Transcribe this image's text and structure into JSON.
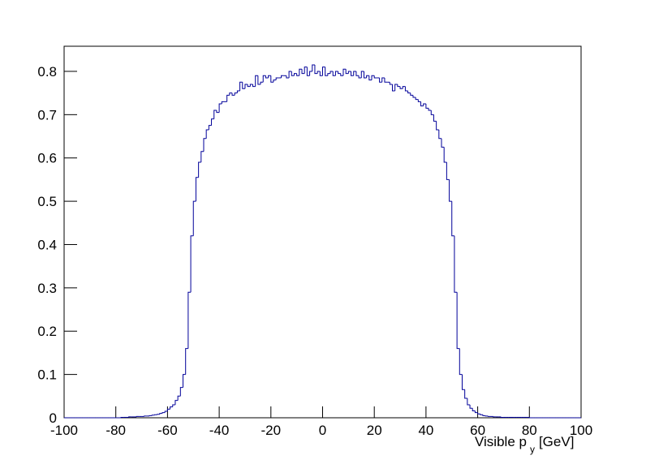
{
  "chart_data": {
    "type": "histogram",
    "xlabel": "Visible p",
    "xlabel_subscript": "y",
    "xlabel_unit": "[GeV]",
    "color": "#000099",
    "xlim": [
      -100,
      100
    ],
    "ylim": [
      0,
      0.858
    ],
    "xticks": [
      -100,
      -80,
      -60,
      -40,
      -20,
      0,
      20,
      40,
      60,
      80,
      100
    ],
    "yticks": [
      0,
      0.1,
      0.2,
      0.3,
      0.4,
      0.5,
      0.6,
      0.7,
      0.8
    ],
    "bins": [
      -100,
      -99,
      -98,
      -97,
      -96,
      -95,
      -94,
      -93,
      -92,
      -91,
      -90,
      -89,
      -88,
      -87,
      -86,
      -85,
      -84,
      -83,
      -82,
      -81,
      -80,
      -79,
      -78,
      -77,
      -76,
      -75,
      -74,
      -73,
      -72,
      -71,
      -70,
      -69,
      -68,
      -67,
      -66,
      -65,
      -64,
      -63,
      -62,
      -61,
      -60,
      -59,
      -58,
      -57,
      -56,
      -55,
      -54,
      -53,
      -52,
      -51,
      -50,
      -49,
      -48,
      -47,
      -46,
      -45,
      -44,
      -43,
      -42,
      -41,
      -40,
      -39,
      -38,
      -37,
      -36,
      -35,
      -34,
      -33,
      -32,
      -31,
      -30,
      -29,
      -28,
      -27,
      -26,
      -25,
      -24,
      -23,
      -22,
      -21,
      -20,
      -19,
      -18,
      -17,
      -16,
      -15,
      -14,
      -13,
      -12,
      -11,
      -10,
      -9,
      -8,
      -7,
      -6,
      -5,
      -4,
      -3,
      -2,
      -1,
      0,
      1,
      2,
      3,
      4,
      5,
      6,
      7,
      8,
      9,
      10,
      11,
      12,
      13,
      14,
      15,
      16,
      17,
      18,
      19,
      20,
      21,
      22,
      23,
      24,
      25,
      26,
      27,
      28,
      29,
      30,
      31,
      32,
      33,
      34,
      35,
      36,
      37,
      38,
      39,
      40,
      41,
      42,
      43,
      44,
      45,
      46,
      47,
      48,
      49,
      50,
      51,
      52,
      53,
      54,
      55,
      56,
      57,
      58,
      59,
      60,
      61,
      62,
      63,
      64,
      65,
      66,
      67,
      68,
      69,
      70,
      71,
      72,
      73,
      74,
      75,
      76,
      77,
      78,
      79,
      80,
      81,
      82,
      83,
      84,
      85,
      86,
      87,
      88,
      89,
      90,
      91,
      92,
      93,
      94,
      95,
      96,
      97,
      98,
      99,
      100
    ],
    "values": [
      0,
      0,
      0,
      0,
      0,
      0,
      0,
      0,
      0,
      0,
      0,
      0,
      0,
      0,
      0,
      0,
      0,
      0,
      0,
      0,
      0,
      0,
      0.001,
      0.001,
      0.001,
      0.002,
      0.002,
      0.002,
      0.003,
      0.003,
      0.003,
      0.004,
      0.004,
      0.005,
      0.006,
      0.007,
      0.008,
      0.01,
      0.012,
      0.015,
      0.02,
      0.025,
      0.03,
      0.04,
      0.05,
      0.07,
      0.1,
      0.16,
      0.29,
      0.42,
      0.5,
      0.555,
      0.59,
      0.615,
      0.645,
      0.665,
      0.675,
      0.69,
      0.71,
      0.705,
      0.725,
      0.73,
      0.73,
      0.745,
      0.75,
      0.745,
      0.75,
      0.755,
      0.775,
      0.76,
      0.77,
      0.765,
      0.77,
      0.765,
      0.79,
      0.77,
      0.775,
      0.79,
      0.785,
      0.79,
      0.775,
      0.78,
      0.785,
      0.785,
      0.79,
      0.79,
      0.785,
      0.8,
      0.79,
      0.795,
      0.79,
      0.805,
      0.795,
      0.81,
      0.79,
      0.8,
      0.815,
      0.795,
      0.8,
      0.79,
      0.81,
      0.79,
      0.795,
      0.8,
      0.79,
      0.8,
      0.795,
      0.79,
      0.805,
      0.795,
      0.8,
      0.79,
      0.8,
      0.79,
      0.785,
      0.8,
      0.785,
      0.79,
      0.78,
      0.79,
      0.785,
      0.785,
      0.775,
      0.785,
      0.775,
      0.775,
      0.77,
      0.755,
      0.77,
      0.765,
      0.76,
      0.765,
      0.755,
      0.75,
      0.745,
      0.74,
      0.735,
      0.73,
      0.72,
      0.725,
      0.715,
      0.71,
      0.7,
      0.685,
      0.665,
      0.645,
      0.625,
      0.59,
      0.55,
      0.5,
      0.42,
      0.29,
      0.16,
      0.1,
      0.065,
      0.045,
      0.03,
      0.022,
      0.016,
      0.012,
      0.009,
      0.007,
      0.005,
      0.004,
      0.003,
      0.003,
      0.002,
      0.002,
      0.002,
      0.001,
      0.001,
      0.001,
      0.001,
      0.001,
      0.001,
      0.001,
      0.001,
      0.001,
      0.001,
      0.001,
      0,
      0,
      0,
      0,
      0,
      0,
      0,
      0,
      0,
      0,
      0,
      0,
      0,
      0,
      0,
      0,
      0,
      0,
      0,
      0
    ]
  }
}
